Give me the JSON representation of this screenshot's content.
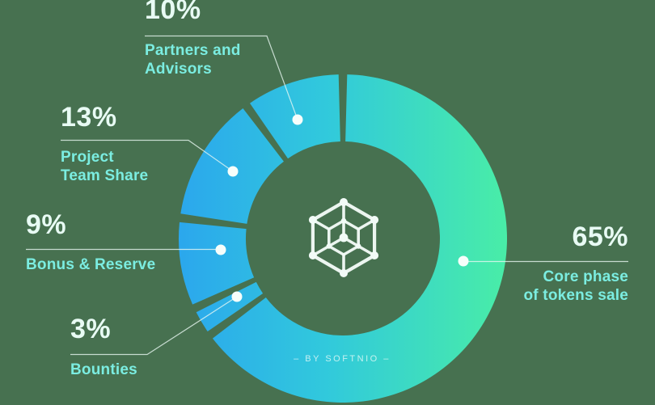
{
  "chart_data": {
    "type": "donut",
    "legend_position": "callouts",
    "start_angle_deg_from_top": 0,
    "direction": "clockwise",
    "segments": [
      {
        "label": "Core phase of tokens sale",
        "value": 65,
        "pct_label": "65%",
        "label_lines": [
          "Core phase",
          "of tokens sale"
        ]
      },
      {
        "label": "Bounties",
        "value": 3,
        "pct_label": "3%",
        "label_lines": [
          "Bounties"
        ]
      },
      {
        "label": "Bonus & Reserve",
        "value": 9,
        "pct_label": "9%",
        "label_lines": [
          "Bonus & Reserve"
        ]
      },
      {
        "label": "Project Team Share",
        "value": 13,
        "pct_label": "13%",
        "label_lines": [
          "Project",
          "Team Share"
        ]
      },
      {
        "label": "Partners and Advisors",
        "value": 10,
        "pct_label": "10%",
        "label_lines": [
          "Partners and",
          "Advisors"
        ]
      }
    ],
    "colors": {
      "background": "#477150",
      "gradient_start": "#2BA7ED",
      "gradient_mid": "#31C9DC",
      "gradient_end": "#49EDA7",
      "percent_text": "#E8FBF4",
      "label_text": "#7BEDE1",
      "leader_line": "#EAF9F3",
      "dot": "#F6FEFB",
      "logo": "#F2FBF7"
    },
    "credit": "– BY SOFTNIO –"
  }
}
